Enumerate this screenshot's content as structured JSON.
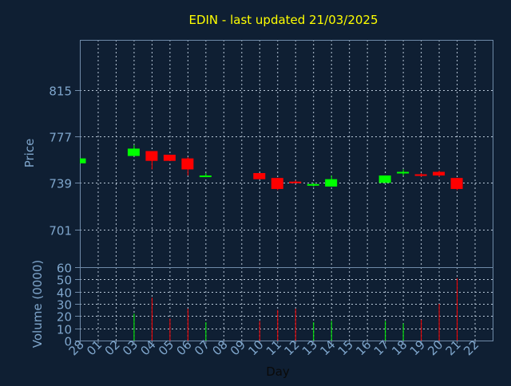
{
  "chart_data": {
    "type": "candlestick",
    "title": "EDIN - last updated 21/03/2025",
    "xlabel": "Day",
    "price_panel": {
      "ylabel": "Price",
      "ylim": [
        670,
        856
      ],
      "yticks": [
        701,
        739,
        777,
        815
      ]
    },
    "volume_panel": {
      "ylabel": "Volume (0000)",
      "ylim": [
        0,
        60
      ],
      "yticks": [
        0,
        10,
        20,
        30,
        40,
        50,
        60
      ]
    },
    "categories": [
      "28",
      "01",
      "02",
      "03",
      "04",
      "05",
      "06",
      "07",
      "08",
      "09",
      "10",
      "11",
      "12",
      "13",
      "14",
      "15",
      "16",
      "17",
      "18",
      "19",
      "20",
      "21",
      "22"
    ],
    "candles": [
      {
        "day": "28",
        "open": 755,
        "high": 759,
        "low": 755,
        "close": 759,
        "volume": 0
      },
      {
        "day": "03",
        "open": 761,
        "high": 770,
        "low": 761,
        "close": 767,
        "volume": 22
      },
      {
        "day": "04",
        "open": 765,
        "high": 765,
        "low": 750,
        "close": 757,
        "volume": 35
      },
      {
        "day": "05",
        "open": 762,
        "high": 762,
        "low": 757,
        "close": 757,
        "volume": 18
      },
      {
        "day": "06",
        "open": 759,
        "high": 760,
        "low": 745,
        "close": 750,
        "volume": 26
      },
      {
        "day": "07",
        "open": 744,
        "high": 747,
        "low": 744,
        "close": 745,
        "volume": 15
      },
      {
        "day": "10",
        "open": 747,
        "high": 747,
        "low": 742,
        "close": 742,
        "volume": 16
      },
      {
        "day": "11",
        "open": 743,
        "high": 743,
        "low": 733,
        "close": 734,
        "volume": 25
      },
      {
        "day": "12",
        "open": 740,
        "high": 741,
        "low": 739,
        "close": 739,
        "volume": 26
      },
      {
        "day": "13",
        "open": 737,
        "high": 739,
        "low": 736,
        "close": 738,
        "volume": 15
      },
      {
        "day": "14",
        "open": 736,
        "high": 745,
        "low": 736,
        "close": 742,
        "volume": 16
      },
      {
        "day": "17",
        "open": 739,
        "high": 745,
        "low": 739,
        "close": 745,
        "volume": 16
      },
      {
        "day": "18",
        "open": 748,
        "high": 750,
        "low": 745,
        "close": 748,
        "volume": 14
      },
      {
        "day": "19",
        "open": 746,
        "high": 747,
        "low": 744,
        "close": 745,
        "volume": 17
      },
      {
        "day": "20",
        "open": 748,
        "high": 749,
        "low": 744,
        "close": 745,
        "volume": 30
      },
      {
        "day": "21",
        "open": 743,
        "high": 743,
        "low": 733,
        "close": 734,
        "volume": 51
      }
    ],
    "colors": {
      "background": "#0f1f33",
      "title": "#ffff00",
      "axis_text": "#7fa6cc",
      "frame": "#6f8aa8",
      "grid": "#b7c6d6",
      "up": "#00ff00",
      "down": "#ff0000"
    },
    "grid": true
  }
}
